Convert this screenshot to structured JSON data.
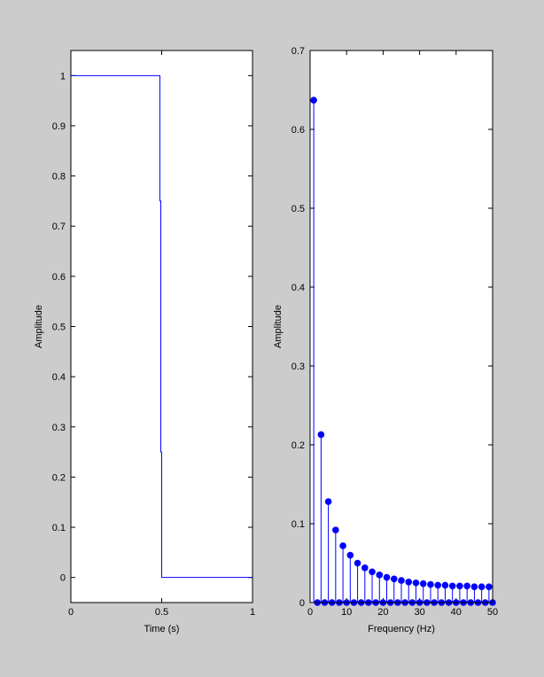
{
  "chart_data": [
    {
      "type": "line",
      "xlabel": "Time (s)",
      "ylabel": "Amplitude",
      "color": "#0000ff",
      "x": [
        0,
        0.49,
        0.49,
        0.495,
        0.495,
        0.5,
        0.5,
        1
      ],
      "y": [
        1,
        1,
        0.75,
        0.75,
        0.25,
        0.25,
        0,
        0
      ],
      "xlim": [
        0,
        1
      ],
      "ylim": [
        -0.05,
        1.05
      ],
      "xticks": [
        0,
        0.5,
        1
      ],
      "yticks": [
        0,
        0.1,
        0.2,
        0.3,
        0.4,
        0.5,
        0.6,
        0.7,
        0.8,
        0.9,
        1
      ]
    },
    {
      "type": "stem",
      "xlabel": "Frequency (Hz)",
      "ylabel": "Amplitude",
      "color": "#0000ff",
      "x": [
        1,
        2,
        3,
        4,
        5,
        6,
        7,
        8,
        9,
        10,
        11,
        12,
        13,
        14,
        15,
        16,
        17,
        18,
        19,
        20,
        21,
        22,
        23,
        24,
        25,
        26,
        27,
        28,
        29,
        30,
        31,
        32,
        33,
        34,
        35,
        36,
        37,
        38,
        39,
        40,
        41,
        42,
        43,
        44,
        45,
        46,
        47,
        48,
        49,
        50
      ],
      "y": [
        0.637,
        0,
        0.213,
        0,
        0.128,
        0,
        0.092,
        0,
        0.072,
        0,
        0.06,
        0,
        0.05,
        0,
        0.044,
        0,
        0.039,
        0,
        0.035,
        0,
        0.032,
        0,
        0.03,
        0,
        0.028,
        0,
        0.026,
        0,
        0.025,
        0,
        0.024,
        0,
        0.023,
        0,
        0.022,
        0,
        0.022,
        0,
        0.021,
        0,
        0.021,
        0,
        0.021,
        0,
        0.02,
        0,
        0.02,
        0,
        0.02,
        0
      ],
      "xlim": [
        0,
        50
      ],
      "ylim": [
        0,
        0.7
      ],
      "xticks": [
        0,
        10,
        20,
        30,
        40,
        50
      ],
      "yticks": [
        0,
        0.1,
        0.2,
        0.3,
        0.4,
        0.5,
        0.6,
        0.7
      ]
    }
  ]
}
